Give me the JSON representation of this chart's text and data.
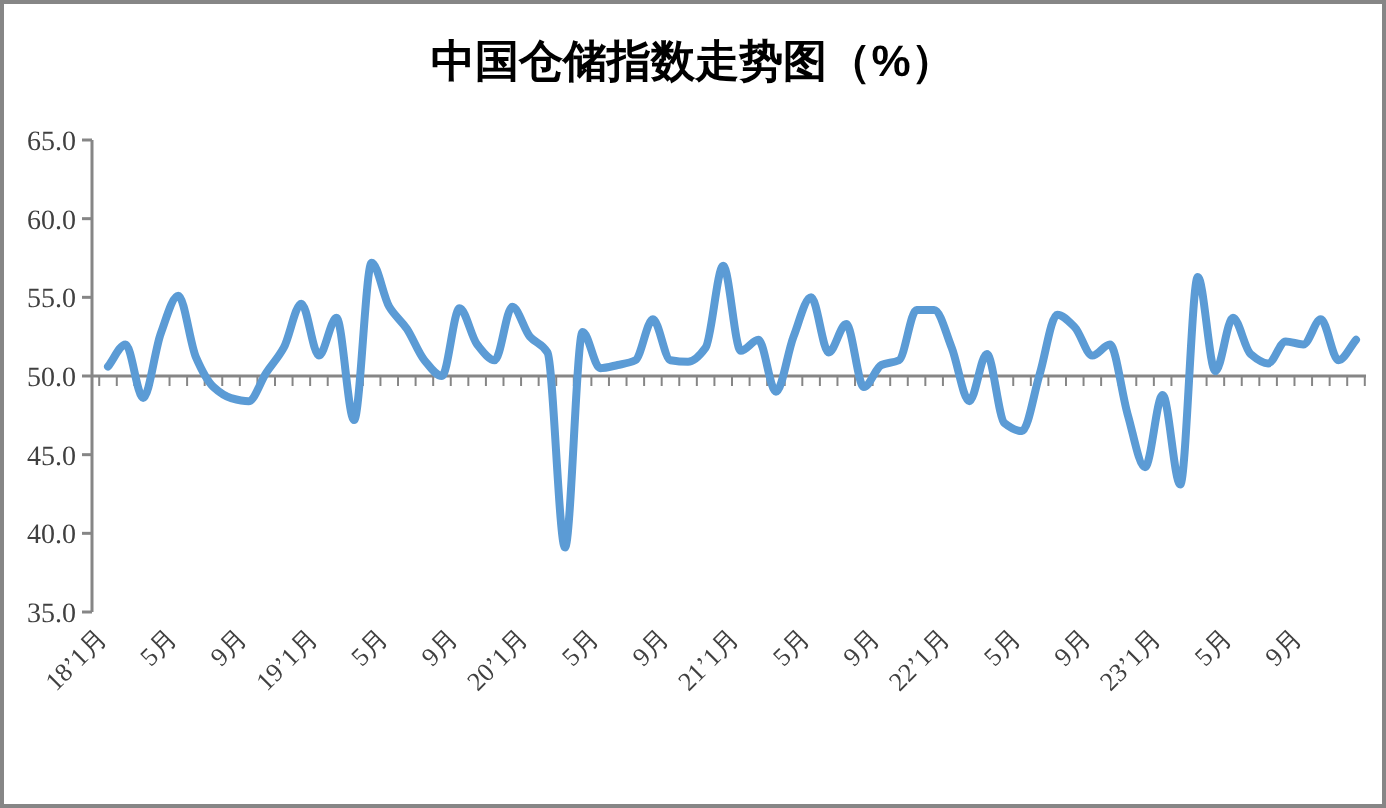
{
  "chart_data": {
    "type": "line",
    "title": "中国仓储指数走势图（%）",
    "categories": [
      "18’1月",
      null,
      null,
      null,
      "5月",
      null,
      null,
      null,
      "9月",
      null,
      null,
      null,
      "19’1月",
      null,
      null,
      null,
      "5月",
      null,
      null,
      null,
      "9月",
      null,
      null,
      null,
      "20’1月",
      null,
      null,
      null,
      "5月",
      null,
      null,
      null,
      "9月",
      null,
      null,
      null,
      "21’1月",
      null,
      null,
      null,
      "5月",
      null,
      null,
      null,
      "9月",
      null,
      null,
      null,
      "22’1月",
      null,
      null,
      null,
      "5月",
      null,
      null,
      null,
      "9月",
      null,
      null,
      null,
      "23’1月",
      null,
      null,
      null,
      "5月",
      null,
      null,
      null,
      "9月",
      null,
      null,
      null
    ],
    "series": [
      {
        "color": "#5b9bd5",
        "values": [
          50.6,
          52.0,
          48.6,
          52.7,
          55.1,
          51.2,
          49.3,
          48.6,
          48.4,
          50.2,
          51.8,
          54.6,
          51.3,
          53.7,
          47.2,
          57.2,
          54.4,
          53.0,
          51.0,
          50.0,
          54.3,
          52.0,
          51.0,
          54.4,
          52.5,
          51.5,
          39.1,
          52.8,
          50.5,
          50.7,
          51.0,
          53.6,
          51.0,
          50.9,
          51.8,
          57.0,
          51.6,
          52.3,
          49.0,
          52.5,
          55.0,
          51.5,
          53.3,
          49.3,
          50.7,
          51.0,
          54.2,
          54.2,
          51.8,
          48.4,
          51.4,
          47.0,
          46.5,
          50.1,
          53.9,
          53.1,
          51.3,
          52.0,
          47.6,
          44.2,
          48.8,
          43.1,
          56.3,
          50.3,
          53.7,
          51.4,
          50.8,
          52.2,
          52.0,
          53.6,
          51.0,
          52.3
        ]
      }
    ],
    "ylim": [
      35,
      65
    ],
    "yticks": [
      {
        "value": 35,
        "label": "35.0"
      },
      {
        "value": 40,
        "label": "40.0"
      },
      {
        "value": 45,
        "label": "45.0"
      },
      {
        "value": 50,
        "label": "50.0"
      },
      {
        "value": 55,
        "label": "55.0"
      },
      {
        "value": 60,
        "label": "60.0"
      },
      {
        "value": 65,
        "label": "65.0"
      }
    ],
    "ref_lines": [
      {
        "axis": "y",
        "value": 50,
        "color": "#868686"
      }
    ],
    "grid": false
  }
}
